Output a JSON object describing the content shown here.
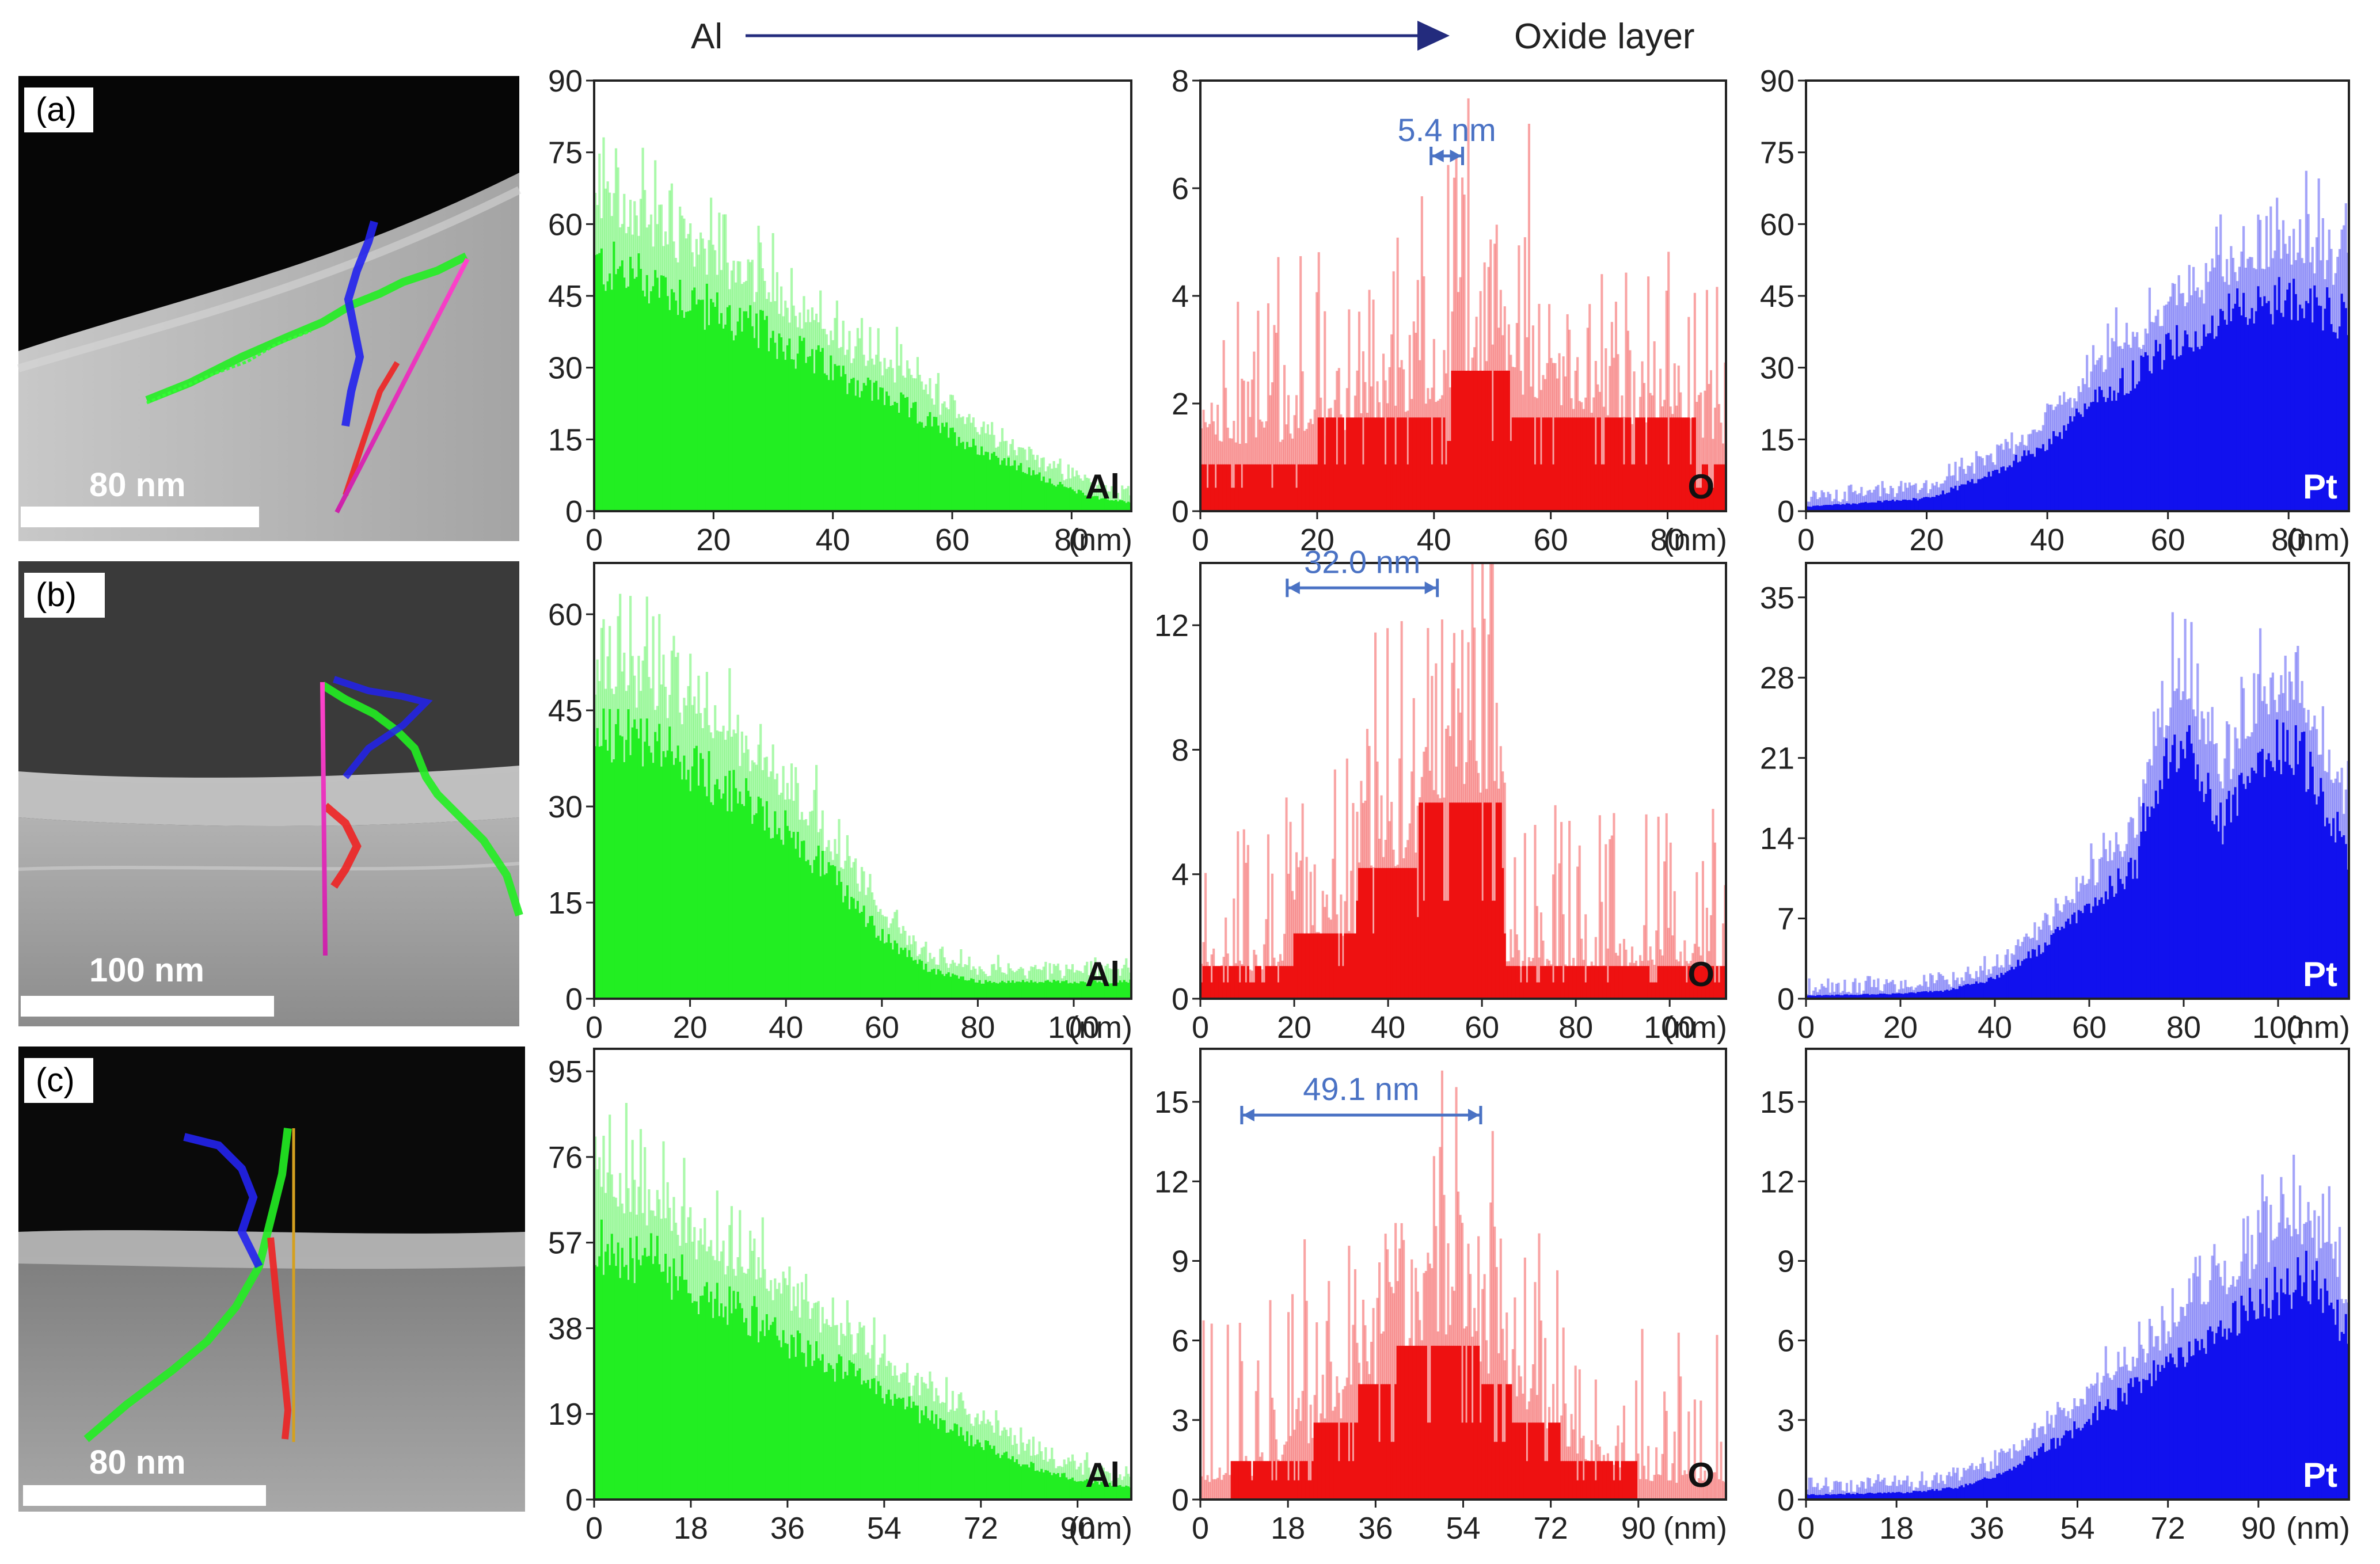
{
  "header": {
    "left_label": "Al",
    "right_label": "Oxide layer"
  },
  "colors": {
    "al": "#22ee22",
    "o": "#ee1111",
    "pt": "#1111ee",
    "annotation": "#4a72c4",
    "header_arrow": "#232b7d"
  },
  "images": [
    {
      "label": "(a)",
      "scale_text": "80 nm"
    },
    {
      "label": "(b)",
      "scale_text": "100 nm"
    },
    {
      "label": "(c)",
      "scale_text": "80 nm"
    }
  ],
  "chart_data": [
    {
      "type": "area",
      "row": "a",
      "element": "Al",
      "color": "#22ee22",
      "xlim": [
        0,
        90
      ],
      "ylim": [
        0,
        90
      ],
      "xticks": [
        0,
        20,
        40,
        60,
        80
      ],
      "yticks": [
        0,
        15,
        30,
        45,
        60,
        75,
        90
      ],
      "xlabel": "(nm)",
      "label": "Al",
      "profile_x": [
        0,
        10,
        20,
        30,
        40,
        50,
        60,
        70,
        80,
        85,
        90
      ],
      "profile_y": [
        58,
        54,
        47,
        41,
        33,
        26,
        18,
        11,
        5,
        3,
        2
      ]
    },
    {
      "type": "area",
      "row": "a",
      "element": "O",
      "color": "#ee1111",
      "xlim": [
        0,
        90
      ],
      "ylim": [
        0,
        8
      ],
      "xticks": [
        0,
        20,
        40,
        60,
        80
      ],
      "yticks": [
        0,
        2,
        4,
        6,
        8
      ],
      "xlabel": "(nm)",
      "label": "O",
      "profile_x": [
        0,
        20,
        40,
        45,
        60,
        80,
        90
      ],
      "profile_y": [
        1.2,
        1.3,
        2.0,
        2.4,
        2.0,
        1.4,
        1.2
      ],
      "annotation": {
        "text": "5.4 nm",
        "from": 39.5,
        "to": 44.9,
        "y": 6.6
      }
    },
    {
      "type": "area",
      "row": "a",
      "element": "Pt",
      "color": "#1111ee",
      "xlim": [
        0,
        90
      ],
      "ylim": [
        0,
        90
      ],
      "xticks": [
        0,
        20,
        40,
        60,
        80
      ],
      "yticks": [
        0,
        15,
        30,
        45,
        60,
        75,
        90
      ],
      "xlabel": "(nm)",
      "label": "Pt",
      "profile_x": [
        0,
        10,
        20,
        30,
        40,
        50,
        60,
        70,
        80,
        90
      ],
      "profile_y": [
        1,
        2,
        3,
        8,
        16,
        28,
        38,
        46,
        50,
        45
      ]
    },
    {
      "type": "area",
      "row": "b",
      "element": "Al",
      "color": "#22ee22",
      "xlim": [
        0,
        112
      ],
      "ylim": [
        0,
        68
      ],
      "xticks": [
        0,
        20,
        40,
        60,
        80,
        100
      ],
      "yticks": [
        0,
        15,
        30,
        45,
        60
      ],
      "xlabel": "(nm)",
      "label": "Al",
      "profile_x": [
        0,
        10,
        20,
        30,
        40,
        50,
        60,
        70,
        80,
        90,
        100,
        112
      ],
      "profile_y": [
        47,
        45,
        41,
        36,
        30,
        21,
        11,
        5,
        3,
        3,
        3,
        3
      ]
    },
    {
      "type": "area",
      "row": "b",
      "element": "O",
      "color": "#ee1111",
      "xlim": [
        0,
        112
      ],
      "ylim": [
        0,
        14
      ],
      "xticks": [
        0,
        20,
        40,
        60,
        80,
        100
      ],
      "yticks": [
        0,
        4,
        8,
        12
      ],
      "xlabel": "(nm)",
      "label": "O",
      "profile_x": [
        0,
        19,
        20,
        33,
        34,
        46,
        47,
        64,
        65,
        112
      ],
      "profile_y": [
        0.9,
        0.9,
        2.0,
        2.0,
        4.2,
        4.2,
        6.4,
        6.4,
        1.0,
        1.0
      ],
      "annotation": {
        "text": "32.0 nm",
        "from": 18.5,
        "to": 50.5,
        "y": 13.2
      }
    },
    {
      "type": "area",
      "row": "b",
      "element": "Pt",
      "color": "#1111ee",
      "xlim": [
        0,
        115
      ],
      "ylim": [
        0,
        38
      ],
      "xticks": [
        0,
        20,
        40,
        60,
        80,
        100
      ],
      "yticks": [
        0,
        7,
        14,
        21,
        28,
        35
      ],
      "xlabel": "(nm)",
      "label": "Pt",
      "profile_x": [
        0,
        20,
        30,
        40,
        50,
        60,
        70,
        72,
        80,
        88,
        96,
        104,
        115
      ],
      "profile_y": [
        0.3,
        0.5,
        0.8,
        2,
        5,
        9,
        13,
        19,
        26,
        17,
        24,
        25,
        14
      ]
    },
    {
      "type": "area",
      "row": "c",
      "element": "Al",
      "color": "#22ee22",
      "xlim": [
        0,
        100
      ],
      "ylim": [
        0,
        100
      ],
      "xticks": [
        0,
        18,
        36,
        54,
        72,
        90
      ],
      "yticks": [
        0,
        19,
        38,
        57,
        76,
        95
      ],
      "xlabel": "(nm)",
      "label": "Al",
      "profile_x": [
        0,
        10,
        20,
        30,
        40,
        50,
        60,
        70,
        80,
        90,
        100
      ],
      "profile_y": [
        64,
        60,
        52,
        45,
        37,
        29,
        22,
        15,
        9,
        5,
        3
      ]
    },
    {
      "type": "area",
      "row": "c",
      "element": "O",
      "color": "#ee1111",
      "xlim": [
        0,
        108
      ],
      "ylim": [
        0,
        17
      ],
      "xticks": [
        0,
        18,
        36,
        54,
        72,
        90
      ],
      "yticks": [
        0,
        3,
        6,
        9,
        12,
        15
      ],
      "xlabel": "(nm)",
      "label": "O",
      "profile_x": [
        0,
        10,
        20,
        30,
        40,
        48,
        56,
        64,
        72,
        80,
        90,
        100,
        108
      ],
      "profile_y": [
        0.6,
        0.8,
        1.8,
        3.2,
        5.0,
        6.2,
        5.5,
        3.6,
        2.4,
        1.4,
        0.7,
        0.6,
        0.6
      ],
      "annotation": {
        "text": "49.1 nm",
        "from": 8.5,
        "to": 57.6,
        "y": 14.5
      }
    },
    {
      "type": "area",
      "row": "c",
      "element": "Pt",
      "color": "#1111ee",
      "xlim": [
        0,
        108
      ],
      "ylim": [
        0,
        17
      ],
      "xticks": [
        0,
        18,
        36,
        54,
        72,
        90
      ],
      "yticks": [
        0,
        3,
        6,
        9,
        12,
        15
      ],
      "xlabel": "(nm)",
      "label": "Pt",
      "profile_x": [
        0,
        20,
        30,
        40,
        50,
        60,
        70,
        80,
        90,
        100,
        108
      ],
      "profile_y": [
        0.2,
        0.3,
        0.5,
        1.2,
        2.5,
        4,
        5.5,
        7,
        8.5,
        9.5,
        7
      ]
    }
  ]
}
